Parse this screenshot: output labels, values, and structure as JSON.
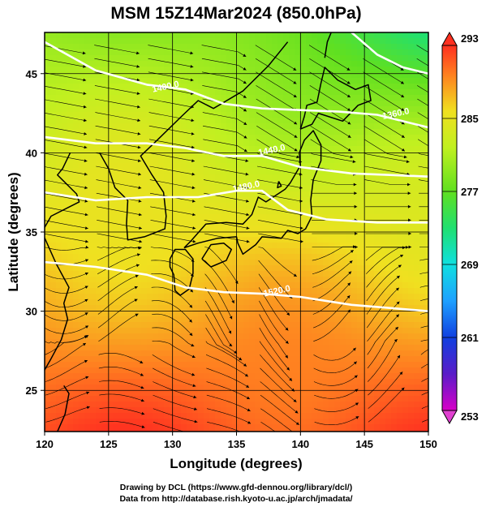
{
  "title": "MSM 15Z14Mar2024 (850.0hPa)",
  "xlabel": "Longitude (degrees)",
  "ylabel": "Latitude  (degrees)",
  "credit_line1": "Drawing by DCL (https://www.gfd-dennou.org/library/dcl/)",
  "credit_line2": "Data from http://database.rish.kyoto-u.ac.jp/arch/jmadata/",
  "chart_data": {
    "type": "heatmap",
    "title": "MSM 15Z14Mar2024 (850.0hPa)",
    "xlabel": "Longitude (degrees)",
    "ylabel": "Latitude  (degrees)",
    "xlim": [
      120,
      150
    ],
    "ylim": [
      22.4,
      47.6
    ],
    "x_ticks": [
      120,
      125,
      130,
      135,
      140,
      145,
      150
    ],
    "y_ticks": [
      25,
      30,
      35,
      40,
      45
    ],
    "grid": true,
    "colorbar": {
      "min": 253,
      "max": 293,
      "ticks": [
        253,
        261,
        269,
        277,
        285,
        293
      ],
      "colors": [
        "#d800c8",
        "#5a1cc8",
        "#1040e0",
        "#1ea0ff",
        "#10e0e0",
        "#20e070",
        "#60e020",
        "#c0f020",
        "#f0e020",
        "#ff8020",
        "#ff3020"
      ]
    },
    "contour_labels": [
      {
        "text": "1400.0",
        "lon": 129.5,
        "lat": 44.0
      },
      {
        "text": "1360.0",
        "lon": 147.5,
        "lat": 42.3
      },
      {
        "text": "1440.0",
        "lon": 137.8,
        "lat": 40.0
      },
      {
        "text": "1480.0",
        "lon": 135.8,
        "lat": 37.7
      },
      {
        "text": "1520.0",
        "lon": 138.2,
        "lat": 31.1
      }
    ]
  }
}
